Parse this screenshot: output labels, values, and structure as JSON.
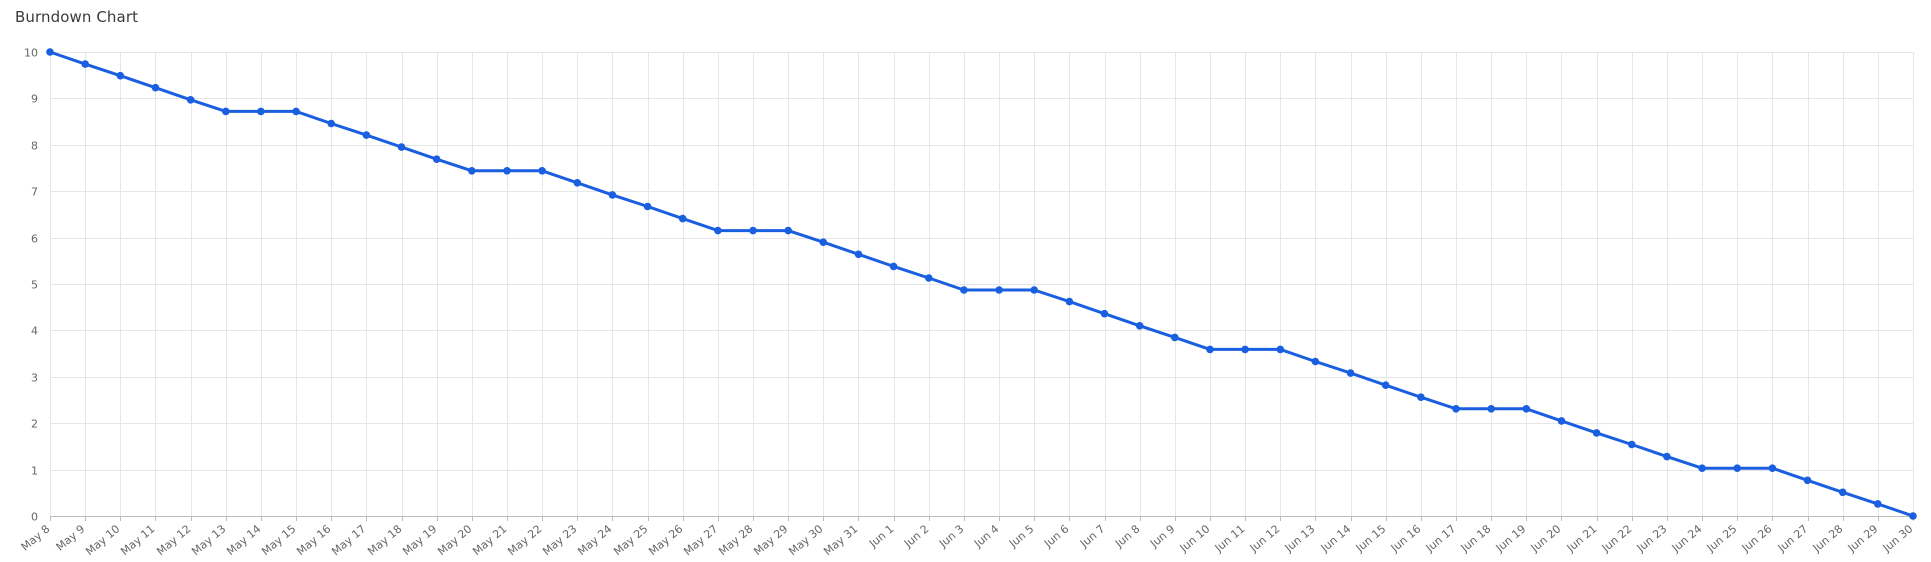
{
  "chart_data": {
    "type": "line",
    "title": "Burndown Chart",
    "xlabel": "",
    "ylabel": "",
    "ylim": [
      0,
      10
    ],
    "yticks": [
      0,
      1,
      2,
      3,
      4,
      5,
      6,
      7,
      8,
      9,
      10
    ],
    "grid": true,
    "legend": "none",
    "categories": [
      "May 8",
      "May 9",
      "May 10",
      "May 11",
      "May 12",
      "May 13",
      "May 14",
      "May 15",
      "May 16",
      "May 17",
      "May 18",
      "May 19",
      "May 20",
      "May 21",
      "May 22",
      "May 23",
      "May 24",
      "May 25",
      "May 26",
      "May 27",
      "May 28",
      "May 29",
      "May 30",
      "May 31",
      "Jun 1",
      "Jun 2",
      "Jun 3",
      "Jun 4",
      "Jun 5",
      "Jun 6",
      "Jun 7",
      "Jun 8",
      "Jun 9",
      "Jun 10",
      "Jun 11",
      "Jun 12",
      "Jun 13",
      "Jun 14",
      "Jun 15",
      "Jun 16",
      "Jun 17",
      "Jun 18",
      "Jun 19",
      "Jun 20",
      "Jun 21",
      "Jun 22",
      "Jun 23",
      "Jun 24",
      "Jun 25",
      "Jun 26",
      "Jun 27",
      "Jun 28",
      "Jun 29",
      "Jun 30"
    ],
    "series": [
      {
        "color": "#1a5fe0",
        "values": [
          10,
          9.74,
          9.49,
          9.23,
          8.97,
          8.72,
          8.72,
          8.72,
          8.46,
          8.21,
          7.95,
          7.69,
          7.44,
          7.44,
          7.44,
          7.18,
          6.92,
          6.67,
          6.41,
          6.15,
          6.15,
          6.15,
          5.9,
          5.64,
          5.38,
          5.13,
          4.87,
          4.87,
          4.87,
          4.62,
          4.36,
          4.1,
          3.85,
          3.59,
          3.59,
          3.59,
          3.33,
          3.08,
          2.82,
          2.56,
          2.31,
          2.31,
          2.31,
          2.05,
          1.79,
          1.54,
          1.28,
          1.03,
          1.03,
          1.03,
          0.77,
          0.51,
          0.26,
          0
        ]
      }
    ]
  }
}
